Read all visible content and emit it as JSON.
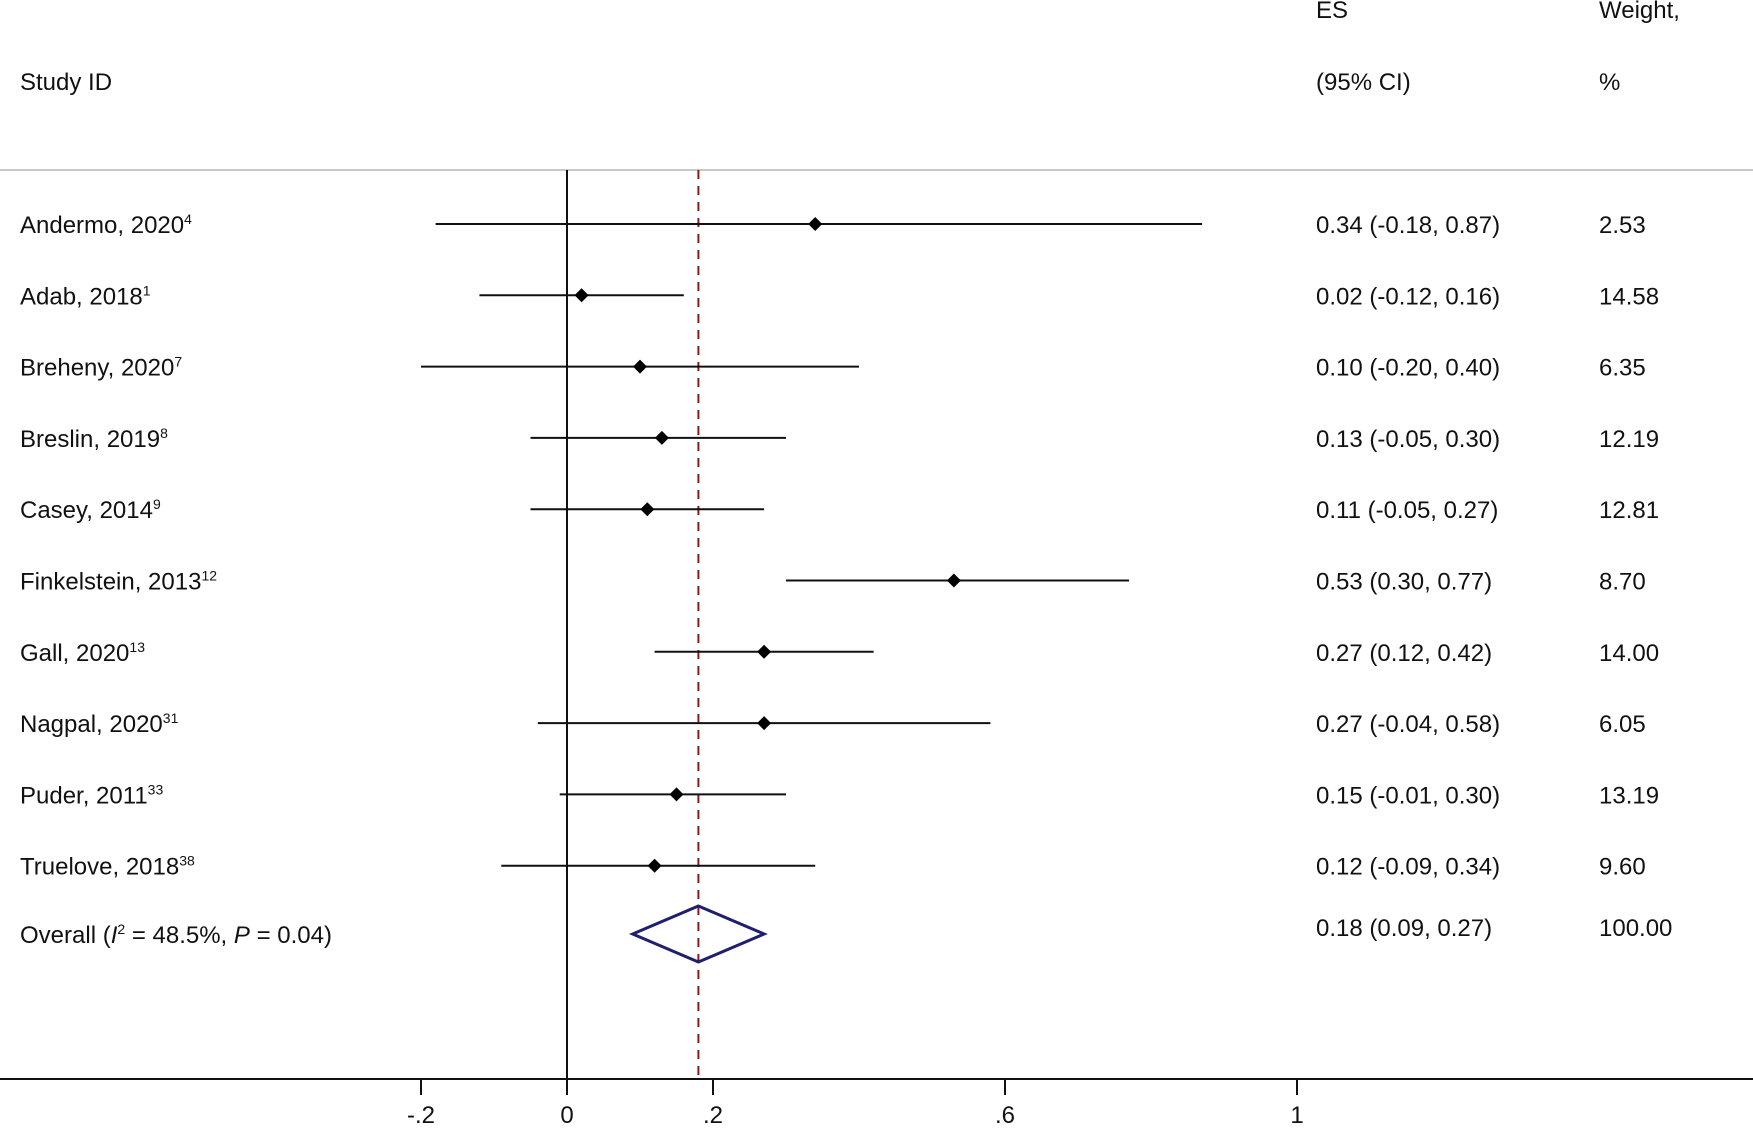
{
  "header": {
    "study_col": "Study ID",
    "es_line1": "ES",
    "es_line2": "(95% CI)",
    "weight_line1": "Weight,",
    "weight_line2": "%"
  },
  "chart_data": {
    "type": "forest",
    "xlim": [
      -0.2,
      1.0
    ],
    "xticks": [
      -0.2,
      0,
      0.2,
      0.6,
      1
    ],
    "xtick_labels": [
      "-.2",
      "0",
      ".2",
      ".6",
      "1"
    ],
    "null_line": 0,
    "pooled_line": 0.18,
    "studies": [
      {
        "label": "Andermo, 2020",
        "ref": "4",
        "es": 0.34,
        "lo": -0.18,
        "hi": 0.87,
        "es_text": "0.34 (-0.18, 0.87)",
        "weight": "2.53"
      },
      {
        "label": "Adab, 2018",
        "ref": "1",
        "es": 0.02,
        "lo": -0.12,
        "hi": 0.16,
        "es_text": "0.02 (-0.12, 0.16)",
        "weight": "14.58"
      },
      {
        "label": "Breheny, 2020",
        "ref": "7",
        "es": 0.1,
        "lo": -0.2,
        "hi": 0.4,
        "es_text": "0.10 (-0.20, 0.40)",
        "weight": "6.35"
      },
      {
        "label": "Breslin, 2019",
        "ref": "8",
        "es": 0.13,
        "lo": -0.05,
        "hi": 0.3,
        "es_text": "0.13 (-0.05, 0.30)",
        "weight": "12.19"
      },
      {
        "label": "Casey, 2014",
        "ref": "9",
        "es": 0.11,
        "lo": -0.05,
        "hi": 0.27,
        "es_text": "0.11 (-0.05, 0.27)",
        "weight": "12.81"
      },
      {
        "label": "Finkelstein, 2013",
        "ref": "12",
        "es": 0.53,
        "lo": 0.3,
        "hi": 0.77,
        "es_text": "0.53 (0.30, 0.77)",
        "weight": "8.70"
      },
      {
        "label": "Gall, 2020",
        "ref": "13",
        "es": 0.27,
        "lo": 0.12,
        "hi": 0.42,
        "es_text": "0.27 (0.12, 0.42)",
        "weight": "14.00"
      },
      {
        "label": "Nagpal, 2020",
        "ref": "31",
        "es": 0.27,
        "lo": -0.04,
        "hi": 0.58,
        "es_text": "0.27 (-0.04, 0.58)",
        "weight": "6.05"
      },
      {
        "label": "Puder, 2011",
        "ref": "33",
        "es": 0.15,
        "lo": -0.01,
        "hi": 0.3,
        "es_text": "0.15 (-0.01, 0.30)",
        "weight": "13.19"
      },
      {
        "label": "Truelove, 2018",
        "ref": "38",
        "es": 0.12,
        "lo": -0.09,
        "hi": 0.34,
        "es_text": "0.12 (-0.09, 0.34)",
        "weight": "9.60"
      }
    ],
    "overall": {
      "label_prefix": "Overall  (",
      "i_symbol": "I",
      "i_sup": "2",
      "i_value": " = 48.5%, ",
      "p_symbol": "P",
      "p_value": " = 0.04)",
      "es": 0.18,
      "lo": 0.09,
      "hi": 0.27,
      "es_text": "0.18 (0.09, 0.27)",
      "weight": "100.00"
    },
    "colors": {
      "marker": "#000000",
      "ci_line": "#111111",
      "null_line": "#111111",
      "pooled_line": "#8b1a1a",
      "overall_diamond": "#1f1f6e",
      "rule": "#c8c8c8"
    }
  }
}
